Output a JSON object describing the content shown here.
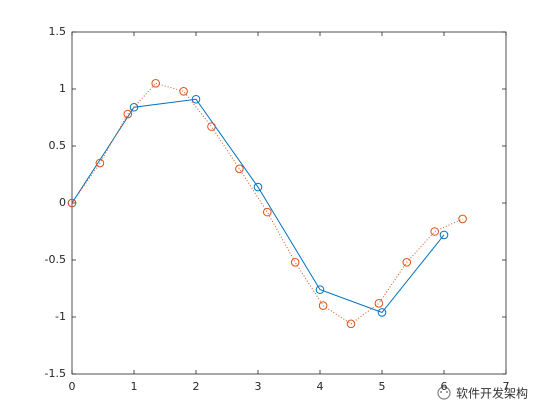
{
  "chart_data": {
    "type": "line",
    "series": [
      {
        "color": "#0072BD",
        "line_style": "solid",
        "marker": "circle",
        "x": [
          0,
          1,
          2,
          3,
          4,
          5,
          6
        ],
        "values": [
          0,
          0.84,
          0.91,
          0.14,
          -0.76,
          -0.96,
          -0.28
        ]
      },
      {
        "color": "#D95319",
        "line_style": "dotted",
        "marker": "circle",
        "x": [
          0,
          0.45,
          0.9,
          1.35,
          1.8,
          2.25,
          2.7,
          3.15,
          3.6,
          4.05,
          4.5,
          4.95,
          5.4,
          5.85,
          6.3
        ],
        "values": [
          0,
          0.35,
          0.78,
          1.05,
          0.98,
          0.67,
          0.3,
          -0.08,
          -0.52,
          -0.9,
          -1.06,
          -0.88,
          -0.52,
          -0.25,
          -0.14
        ]
      }
    ],
    "xlim": [
      0,
      7
    ],
    "xticks": [
      0,
      1,
      2,
      3,
      4,
      5,
      6,
      7
    ],
    "ylim": [
      -1.5,
      1.5
    ],
    "yticks": [
      -1.5,
      -1,
      -0.5,
      0,
      0.5,
      1,
      1.5
    ],
    "grid": false,
    "annotation": "软件开发架构"
  }
}
